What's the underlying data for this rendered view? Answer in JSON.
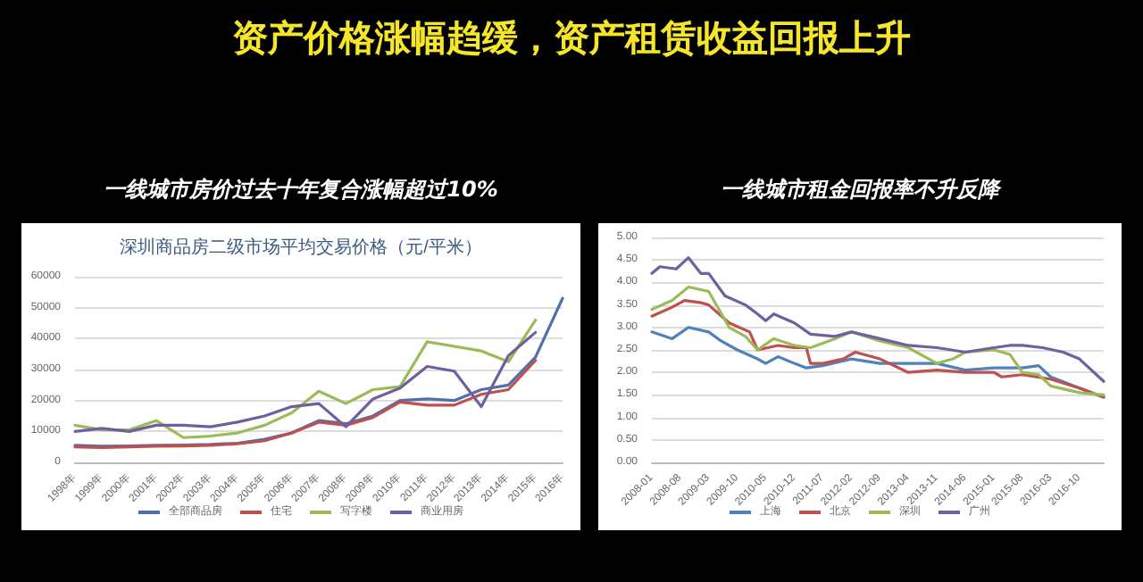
{
  "chart_data": [
    {
      "type": "line",
      "title": "一线城市房价过去十年复合涨幅超过10%",
      "subtitle": "深圳商品房二级市场平均交易价格（元/平米）",
      "annotations": [
        "资产价格涨幅趋缓，资产租赁收益回报上升"
      ],
      "categories": [
        "1998年",
        "1999年",
        "2000年",
        "2001年",
        "2002年",
        "2003年",
        "2004年",
        "2005年",
        "2006年",
        "2007年",
        "2008年",
        "2009年",
        "2010年",
        "2011年",
        "2012年",
        "2013年",
        "2014年",
        "2015年",
        "2016年"
      ],
      "series": [
        {
          "name": "全部商品房",
          "color": "#4f6fad",
          "values": [
            5500,
            5200,
            5300,
            5500,
            5600,
            5800,
            6200,
            7500,
            9500,
            13500,
            12500,
            15000,
            20000,
            20500,
            20000,
            23500,
            25000,
            34000,
            53000
          ]
        },
        {
          "name": "住宅",
          "color": "#c0504d",
          "values": [
            5000,
            4800,
            5000,
            5200,
            5300,
            5500,
            6000,
            7000,
            9500,
            13000,
            12000,
            14500,
            19500,
            18500,
            18500,
            22000,
            23500,
            33000,
            null
          ]
        },
        {
          "name": "写字楼",
          "color": "#9bbb59",
          "values": [
            12000,
            10500,
            10500,
            13500,
            8000,
            8500,
            9500,
            12000,
            16000,
            23000,
            19000,
            23500,
            24500,
            39000,
            37500,
            36000,
            32500,
            46000,
            null
          ]
        },
        {
          "name": "商业用房",
          "color": "#6f5fa0",
          "values": [
            10000,
            11000,
            10000,
            12000,
            12000,
            11500,
            13000,
            15000,
            18000,
            19000,
            11500,
            20500,
            24000,
            31000,
            29500,
            18000,
            34500,
            42000,
            null
          ]
        }
      ],
      "ylim": [
        0,
        60000
      ],
      "yticks": [
        0,
        10000,
        20000,
        30000,
        40000,
        50000,
        60000
      ],
      "grid": "y",
      "legend": "bottom",
      "marker": "none"
    },
    {
      "type": "line",
      "title": "一线城市租金回报率不升反降",
      "xlim": [
        "2008-01",
        "2017-04"
      ],
      "xticks": [
        "2008-01",
        "2008-08",
        "2009-03",
        "2009-10",
        "2010-05",
        "2010-12",
        "2011-07",
        "2012-02",
        "2012-09",
        "2013-04",
        "2013-11",
        "2014-06",
        "2015-01",
        "2015-08",
        "2016-03",
        "2016-10"
      ],
      "series": [
        {
          "name": "上海",
          "color": "#4f81bd",
          "x": [
            "2008-01",
            "2008-06",
            "2008-10",
            "2009-03",
            "2009-06",
            "2009-10",
            "2010-03",
            "2010-05",
            "2010-08",
            "2010-12",
            "2011-03",
            "2011-07",
            "2012-02",
            "2012-09",
            "2013-04",
            "2013-11",
            "2014-06",
            "2015-01",
            "2015-08",
            "2015-12",
            "2016-03",
            "2016-10",
            "2017-04"
          ],
          "values": [
            2.9,
            2.75,
            3.0,
            2.9,
            2.7,
            2.5,
            2.3,
            2.2,
            2.35,
            2.2,
            2.1,
            2.15,
            2.3,
            2.2,
            2.2,
            2.2,
            2.05,
            2.1,
            2.1,
            2.15,
            1.9,
            1.65,
            1.45
          ]
        },
        {
          "name": "北京",
          "color": "#c0504d",
          "x": [
            "2008-01",
            "2008-06",
            "2008-09",
            "2009-01",
            "2009-03",
            "2009-08",
            "2010-01",
            "2010-03",
            "2010-08",
            "2010-12",
            "2011-03",
            "2011-04",
            "2011-07",
            "2011-12",
            "2012-03",
            "2012-09",
            "2013-04",
            "2013-11",
            "2014-06",
            "2015-01",
            "2015-03",
            "2015-08",
            "2016-03",
            "2016-10",
            "2017-04"
          ],
          "values": [
            3.25,
            3.45,
            3.6,
            3.55,
            3.5,
            3.1,
            2.9,
            2.5,
            2.6,
            2.55,
            2.55,
            2.2,
            2.2,
            2.3,
            2.45,
            2.3,
            2.0,
            2.05,
            2.0,
            2.0,
            1.9,
            1.95,
            1.85,
            1.65,
            1.45
          ]
        },
        {
          "name": "深圳",
          "color": "#9bbb59",
          "x": [
            "2008-01",
            "2008-06",
            "2008-10",
            "2009-03",
            "2009-08",
            "2009-12",
            "2010-03",
            "2010-07",
            "2010-12",
            "2011-04",
            "2011-10",
            "2012-02",
            "2012-09",
            "2013-04",
            "2013-11",
            "2014-03",
            "2014-06",
            "2015-01",
            "2015-05",
            "2015-08",
            "2015-12",
            "2016-03",
            "2016-10",
            "2017-04"
          ],
          "values": [
            3.4,
            3.6,
            3.9,
            3.8,
            3.0,
            2.8,
            2.5,
            2.75,
            2.6,
            2.55,
            2.75,
            2.9,
            2.7,
            2.55,
            2.2,
            2.3,
            2.45,
            2.5,
            2.4,
            2.0,
            1.95,
            1.7,
            1.55,
            1.5
          ]
        },
        {
          "name": "广州",
          "color": "#7060a0",
          "x": [
            "2008-01",
            "2008-03",
            "2008-07",
            "2008-10",
            "2009-01",
            "2009-03",
            "2009-07",
            "2009-12",
            "2010-03",
            "2010-05",
            "2010-07",
            "2010-12",
            "2011-04",
            "2011-10",
            "2012-02",
            "2012-09",
            "2013-04",
            "2013-11",
            "2014-06",
            "2015-01",
            "2015-05",
            "2015-08",
            "2016-01",
            "2016-06",
            "2016-10",
            "2017-04"
          ],
          "values": [
            4.2,
            4.35,
            4.3,
            4.55,
            4.2,
            4.2,
            3.7,
            3.5,
            3.3,
            3.15,
            3.3,
            3.1,
            2.85,
            2.8,
            2.9,
            2.75,
            2.6,
            2.55,
            2.45,
            2.55,
            2.6,
            2.6,
            2.55,
            2.45,
            2.3,
            1.8
          ]
        }
      ],
      "ylim": [
        0,
        5
      ],
      "yticks": [
        {
          "value": 0,
          "label": "0.00"
        },
        {
          "value": 0.5,
          "label": "0.50"
        },
        {
          "value": 1,
          "label": "1.00"
        },
        {
          "value": 1.5,
          "label": "1.50"
        },
        {
          "value": 2,
          "label": "2.00"
        },
        {
          "value": 2.5,
          "label": "2.50"
        },
        {
          "value": 3,
          "label": "3.00"
        },
        {
          "value": 3.5,
          "label": "3.50"
        },
        {
          "value": 4,
          "label": "4.00"
        },
        {
          "value": 4.5,
          "label": "4.50"
        },
        {
          "value": 5,
          "label": "5.00"
        }
      ],
      "grid": "y",
      "legend": "bottom",
      "marker": "none"
    }
  ]
}
